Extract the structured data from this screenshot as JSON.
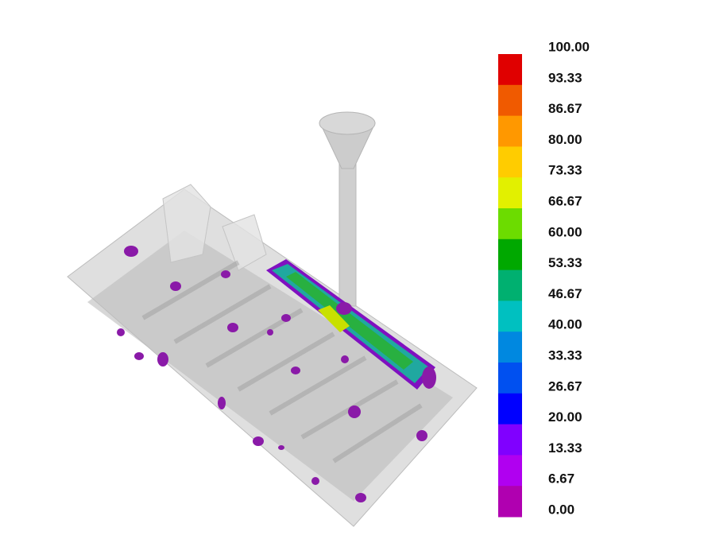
{
  "legend": {
    "labels": [
      "100.00",
      "93.33",
      "86.67",
      "80.00",
      "73.33",
      "66.67",
      "60.00",
      "53.33",
      "46.67",
      "40.00",
      "33.33",
      "26.67",
      "20.00",
      "13.33",
      "6.67",
      "0.00"
    ],
    "colors": [
      "#e00000",
      "#f05a00",
      "#ff9800",
      "#ffcc00",
      "#e2f000",
      "#6cdc00",
      "#00a800",
      "#00b070",
      "#00c0c0",
      "#0088e0",
      "#0050f0",
      "#0000ff",
      "#8000ff",
      "#b000f0",
      "#b000b0"
    ]
  }
}
